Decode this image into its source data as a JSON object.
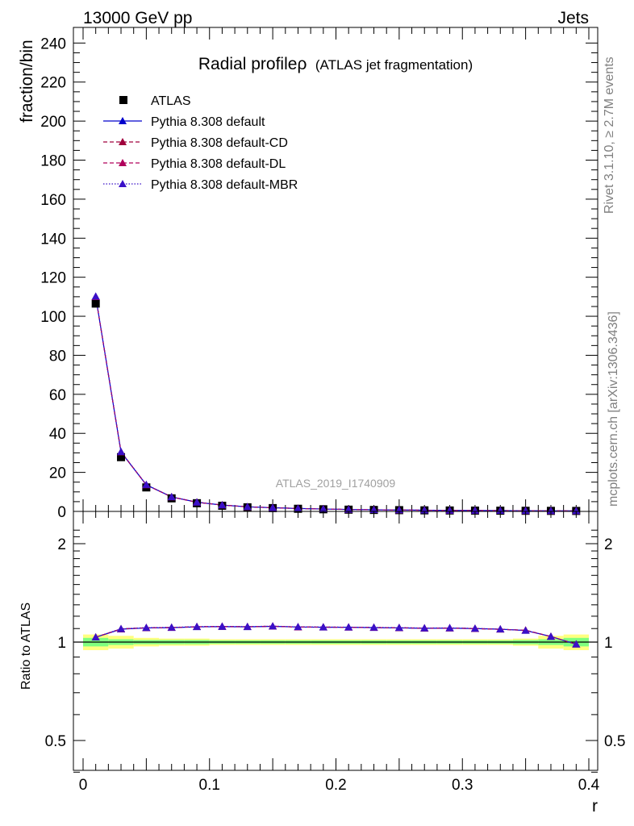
{
  "header": {
    "left": "13000 GeV pp",
    "right": "Jets"
  },
  "side_labels": {
    "rivet": "Rivet 3.1.10, ≥ 2.7M events",
    "mcplots": "mcplots.cern.ch [arXiv:1306.3436]"
  },
  "colors": {
    "atlas": "#000000",
    "default": "#0000cc",
    "cd": "#a0003c",
    "dl": "#b0005c",
    "mbr": "#3a10c8",
    "band_inner": "#7fff7f",
    "band_outer": "#ffff80"
  },
  "chart_data": [
    {
      "type": "line",
      "title": "Radial profileρ",
      "subtitle": "(ATLAS jet fragmentation)",
      "ylabel": "fraction/bin",
      "xlabel": "",
      "watermark": "ATLAS_2019_I1740909",
      "xlim": [
        0,
        0.4
      ],
      "ylim": [
        0,
        248
      ],
      "yticks": [
        0,
        20,
        40,
        60,
        80,
        100,
        120,
        140,
        160,
        180,
        200,
        220,
        240
      ],
      "x": [
        0.01,
        0.03,
        0.05,
        0.07,
        0.09,
        0.11,
        0.13,
        0.15,
        0.17,
        0.19,
        0.21,
        0.23,
        0.25,
        0.27,
        0.29,
        0.31,
        0.33,
        0.35,
        0.37,
        0.39
      ],
      "series": [
        {
          "name": "ATLAS",
          "style": "marker",
          "values": [
            106.5,
            27.8,
            12.3,
            6.7,
            4.2,
            2.9,
            2.1,
            1.7,
            1.35,
            1.1,
            0.9,
            0.75,
            0.65,
            0.55,
            0.48,
            0.42,
            0.37,
            0.32,
            0.28,
            0.25
          ]
        },
        {
          "name": "Pythia 8.308 default",
          "style": "solid",
          "values": [
            110.0,
            30.4,
            13.6,
            7.4,
            4.7,
            3.25,
            2.35,
            1.9,
            1.5,
            1.22,
            1.0,
            0.83,
            0.72,
            0.61,
            0.53,
            0.46,
            0.41,
            0.35,
            0.29,
            0.245
          ]
        },
        {
          "name": "Pythia 8.308 default-CD",
          "style": "dashed",
          "values": [
            110.0,
            30.5,
            13.6,
            7.4,
            4.7,
            3.25,
            2.35,
            1.9,
            1.5,
            1.22,
            1.0,
            0.83,
            0.72,
            0.61,
            0.53,
            0.46,
            0.41,
            0.35,
            0.29,
            0.245
          ]
        },
        {
          "name": "Pythia 8.308 default-DL",
          "style": "dashed",
          "values": [
            110.0,
            30.5,
            13.6,
            7.4,
            4.7,
            3.25,
            2.35,
            1.9,
            1.5,
            1.22,
            1.0,
            0.83,
            0.72,
            0.61,
            0.53,
            0.46,
            0.41,
            0.35,
            0.29,
            0.245
          ]
        },
        {
          "name": "Pythia 8.308 default-MBR",
          "style": "dotted",
          "values": [
            110.2,
            30.6,
            13.7,
            7.45,
            4.72,
            3.26,
            2.36,
            1.91,
            1.5,
            1.22,
            1.0,
            0.83,
            0.72,
            0.61,
            0.53,
            0.46,
            0.41,
            0.35,
            0.29,
            0.245
          ]
        }
      ]
    },
    {
      "type": "line",
      "ylabel": "Ratio to ATLAS",
      "xlabel": "r",
      "xlim": [
        0,
        0.4
      ],
      "ylim": [
        0.35,
        2.3
      ],
      "yticks": [
        0.5,
        1,
        2
      ],
      "xticks": [
        0,
        0.1,
        0.2,
        0.3,
        0.4
      ],
      "x": [
        0.01,
        0.03,
        0.05,
        0.07,
        0.09,
        0.11,
        0.13,
        0.15,
        0.17,
        0.19,
        0.21,
        0.23,
        0.25,
        0.27,
        0.29,
        0.31,
        0.33,
        0.35,
        0.37,
        0.39
      ],
      "band": {
        "edges": [
          0,
          0.02,
          0.04,
          0.06,
          0.08,
          0.1,
          0.12,
          0.14,
          0.16,
          0.18,
          0.2,
          0.22,
          0.24,
          0.26,
          0.28,
          0.3,
          0.32,
          0.34,
          0.36,
          0.38,
          0.4
        ],
        "inner": [
          0.03,
          0.02,
          0.015,
          0.015,
          0.015,
          0.012,
          0.012,
          0.012,
          0.012,
          0.012,
          0.012,
          0.012,
          0.012,
          0.012,
          0.012,
          0.012,
          0.012,
          0.015,
          0.02,
          0.03
        ],
        "outer": [
          0.055,
          0.045,
          0.03,
          0.025,
          0.025,
          0.02,
          0.02,
          0.02,
          0.02,
          0.02,
          0.02,
          0.02,
          0.02,
          0.02,
          0.02,
          0.02,
          0.02,
          0.025,
          0.045,
          0.055
        ]
      },
      "series": [
        {
          "name": "Pythia 8.308 default",
          "values": [
            1.035,
            1.095,
            1.105,
            1.107,
            1.113,
            1.115,
            1.113,
            1.117,
            1.112,
            1.11,
            1.11,
            1.107,
            1.105,
            1.102,
            1.103,
            1.1,
            1.095,
            1.085,
            1.04,
            0.985
          ]
        },
        {
          "name": "Pythia 8.308 default-CD",
          "values": [
            1.035,
            1.097,
            1.106,
            1.108,
            1.114,
            1.116,
            1.114,
            1.118,
            1.112,
            1.111,
            1.11,
            1.108,
            1.106,
            1.103,
            1.104,
            1.1,
            1.094,
            1.087,
            1.04,
            0.985
          ]
        },
        {
          "name": "Pythia 8.308 default-DL",
          "values": [
            1.035,
            1.097,
            1.106,
            1.108,
            1.114,
            1.116,
            1.114,
            1.118,
            1.112,
            1.111,
            1.11,
            1.108,
            1.106,
            1.103,
            1.104,
            1.1,
            1.094,
            1.087,
            1.04,
            0.985
          ]
        },
        {
          "name": "Pythia 8.308 default-MBR",
          "values": [
            1.035,
            1.098,
            1.107,
            1.109,
            1.115,
            1.117,
            1.115,
            1.119,
            1.113,
            1.112,
            1.111,
            1.109,
            1.107,
            1.104,
            1.105,
            1.101,
            1.095,
            1.085,
            1.04,
            0.985
          ]
        }
      ]
    }
  ]
}
